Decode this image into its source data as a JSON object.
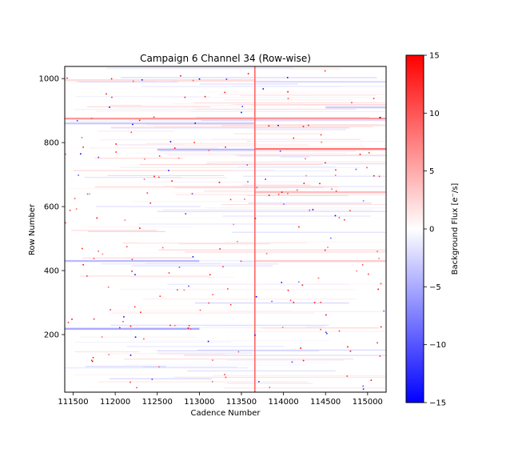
{
  "chart_data": {
    "type": "heatmap",
    "title": "Campaign 6 Channel 34 (Row-wise)",
    "xlabel": "Cadence Number",
    "ylabel": "Row Number",
    "xlim": [
      111400,
      115220
    ],
    "ylim": [
      20,
      1038
    ],
    "x_ticks": [
      111500,
      112000,
      112500,
      113000,
      113500,
      114000,
      114500,
      115000
    ],
    "y_ticks": [
      200,
      400,
      600,
      800,
      1000
    ],
    "colorbar": {
      "label": "Background Flux [e$^-$/s]",
      "label_display": "Background Flux [e⁻/s]",
      "range": [
        -15,
        15
      ],
      "ticks": [
        -15,
        -10,
        -5,
        0,
        5,
        10,
        15
      ],
      "colormap": "bwr",
      "low_color": "#0000ff",
      "mid_color": "#ffffff",
      "high_color": "#ff0000"
    },
    "features": {
      "bright_column_cadence": 113660,
      "row_bands": [
        {
          "row": 875,
          "value": 6,
          "x_from": 111400,
          "x_to": 115220
        },
        {
          "row": 860,
          "value": -3,
          "x_from": 111400,
          "x_to": 113660
        },
        {
          "row": 780,
          "value": 8,
          "x_from": 113660,
          "x_to": 115220
        },
        {
          "row": 778,
          "value": -4,
          "x_from": 112500,
          "x_to": 113660
        },
        {
          "row": 645,
          "value": 4,
          "x_from": 113660,
          "x_to": 115220
        },
        {
          "row": 430,
          "value": -4,
          "x_from": 111400,
          "x_to": 113000
        },
        {
          "row": 430,
          "value": 3,
          "x_from": 113660,
          "x_to": 115220
        },
        {
          "row": 218,
          "value": -5,
          "x_from": 111400,
          "x_to": 113000
        },
        {
          "row": 995,
          "value": 2,
          "x_from": 111400,
          "x_to": 113660
        },
        {
          "row": 990,
          "value": -2,
          "x_from": 113660,
          "x_to": 115220
        },
        {
          "row": 910,
          "value": -3,
          "x_from": 114500,
          "x_to": 115220
        }
      ]
    }
  }
}
